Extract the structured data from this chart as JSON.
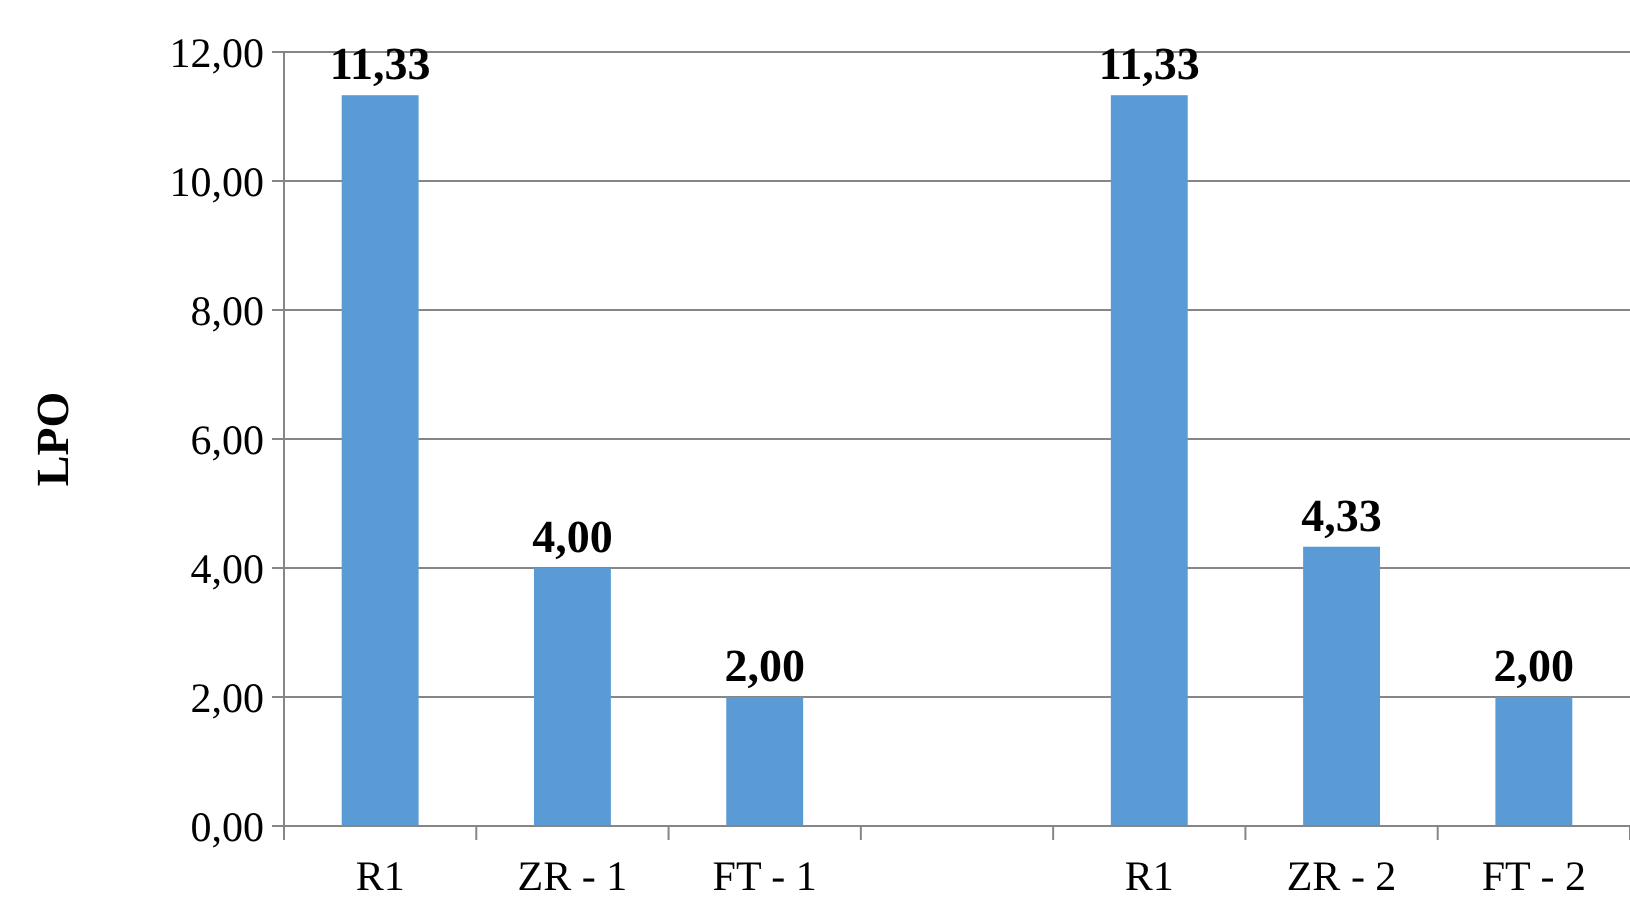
{
  "chart_data": {
    "type": "bar",
    "ylabel": "LPO",
    "categories": [
      "R1",
      "ZR - 1",
      "FT - 1",
      null,
      "R1",
      "ZR - 2",
      "FT - 2"
    ],
    "values": [
      11.33,
      4.0,
      2.0,
      null,
      11.33,
      4.33,
      2.0
    ],
    "value_labels": [
      "11,33",
      "4,00",
      "2,00",
      null,
      "11,33",
      "4,33",
      "2,00"
    ],
    "color": "#5b9bd5",
    "ylim": [
      0,
      12
    ],
    "yticks": [
      {
        "value": 0,
        "label": "0,00"
      },
      {
        "value": 2,
        "label": "2,00"
      },
      {
        "value": 4,
        "label": "4,00"
      },
      {
        "value": 6,
        "label": "6,00"
      },
      {
        "value": 8,
        "label": "8,00"
      },
      {
        "value": 10,
        "label": "10,00"
      },
      {
        "value": 12,
        "label": "12,00"
      }
    ],
    "grid": true
  }
}
